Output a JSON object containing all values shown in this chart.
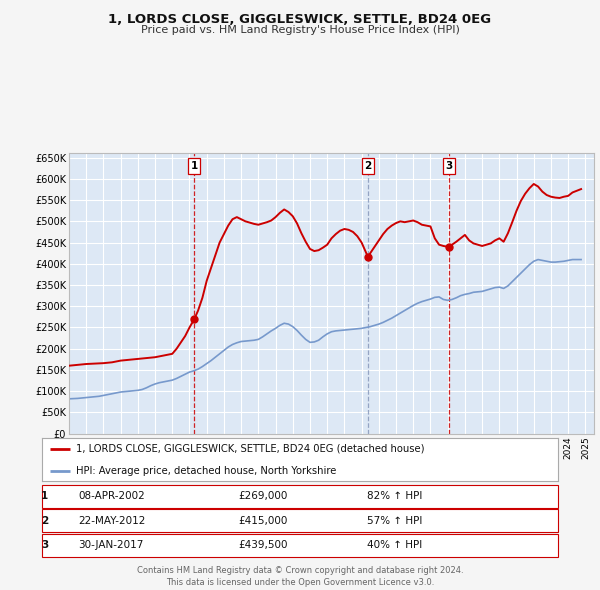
{
  "title": "1, LORDS CLOSE, GIGGLESWICK, SETTLE, BD24 0EG",
  "subtitle": "Price paid vs. HM Land Registry's House Price Index (HPI)",
  "ylim": [
    0,
    660000
  ],
  "yticks": [
    0,
    50000,
    100000,
    150000,
    200000,
    250000,
    300000,
    350000,
    400000,
    450000,
    500000,
    550000,
    600000,
    650000
  ],
  "xlim_start": 1995.0,
  "xlim_end": 2025.5,
  "background_color": "#f5f5f5",
  "plot_bg_color": "#dde8f5",
  "grid_color": "#ffffff",
  "red_line_color": "#cc0000",
  "blue_line_color": "#7799cc",
  "vline_red_color": "#cc0000",
  "vline_blue_color": "#8899bb",
  "sale_points": [
    {
      "year": 2002.27,
      "price": 269000,
      "label": "1"
    },
    {
      "year": 2012.38,
      "price": 415000,
      "label": "2"
    },
    {
      "year": 2017.08,
      "price": 439500,
      "label": "3"
    }
  ],
  "legend_entries": [
    "1, LORDS CLOSE, GIGGLESWICK, SETTLE, BD24 0EG (detached house)",
    "HPI: Average price, detached house, North Yorkshire"
  ],
  "table_data": [
    [
      "1",
      "08-APR-2002",
      "£269,000",
      "82% ↑ HPI"
    ],
    [
      "2",
      "22-MAY-2012",
      "£415,000",
      "57% ↑ HPI"
    ],
    [
      "3",
      "30-JAN-2017",
      "£439,500",
      "40% ↑ HPI"
    ]
  ],
  "footer": "Contains HM Land Registry data © Crown copyright and database right 2024.\nThis data is licensed under the Open Government Licence v3.0.",
  "hpi_data": {
    "years": [
      1995.0,
      1995.25,
      1995.5,
      1995.75,
      1996.0,
      1996.25,
      1996.5,
      1996.75,
      1997.0,
      1997.25,
      1997.5,
      1997.75,
      1998.0,
      1998.25,
      1998.5,
      1998.75,
      1999.0,
      1999.25,
      1999.5,
      1999.75,
      2000.0,
      2000.25,
      2000.5,
      2000.75,
      2001.0,
      2001.25,
      2001.5,
      2001.75,
      2002.0,
      2002.25,
      2002.5,
      2002.75,
      2003.0,
      2003.25,
      2003.5,
      2003.75,
      2004.0,
      2004.25,
      2004.5,
      2004.75,
      2005.0,
      2005.25,
      2005.5,
      2005.75,
      2006.0,
      2006.25,
      2006.5,
      2006.75,
      2007.0,
      2007.25,
      2007.5,
      2007.75,
      2008.0,
      2008.25,
      2008.5,
      2008.75,
      2009.0,
      2009.25,
      2009.5,
      2009.75,
      2010.0,
      2010.25,
      2010.5,
      2010.75,
      2011.0,
      2011.25,
      2011.5,
      2011.75,
      2012.0,
      2012.25,
      2012.5,
      2012.75,
      2013.0,
      2013.25,
      2013.5,
      2013.75,
      2014.0,
      2014.25,
      2014.5,
      2014.75,
      2015.0,
      2015.25,
      2015.5,
      2015.75,
      2016.0,
      2016.25,
      2016.5,
      2016.75,
      2017.0,
      2017.25,
      2017.5,
      2017.75,
      2018.0,
      2018.25,
      2018.5,
      2018.75,
      2019.0,
      2019.25,
      2019.5,
      2019.75,
      2020.0,
      2020.25,
      2020.5,
      2020.75,
      2021.0,
      2021.25,
      2021.5,
      2021.75,
      2022.0,
      2022.25,
      2022.5,
      2022.75,
      2023.0,
      2023.25,
      2023.5,
      2023.75,
      2024.0,
      2024.25,
      2024.5,
      2024.75
    ],
    "values": [
      82000,
      82500,
      83000,
      84000,
      85000,
      86000,
      87000,
      88000,
      90000,
      92000,
      94000,
      96000,
      98000,
      99000,
      100000,
      101000,
      102000,
      104000,
      108000,
      113000,
      117000,
      120000,
      122000,
      124000,
      126000,
      130000,
      135000,
      140000,
      145000,
      148000,
      152000,
      158000,
      165000,
      172000,
      180000,
      188000,
      196000,
      204000,
      210000,
      214000,
      217000,
      218000,
      219000,
      220000,
      222000,
      228000,
      235000,
      242000,
      248000,
      255000,
      260000,
      258000,
      252000,
      243000,
      232000,
      222000,
      215000,
      216000,
      220000,
      228000,
      235000,
      240000,
      242000,
      243000,
      244000,
      245000,
      246000,
      247000,
      248000,
      250000,
      252000,
      255000,
      258000,
      262000,
      267000,
      272000,
      278000,
      284000,
      290000,
      296000,
      302000,
      307000,
      311000,
      314000,
      317000,
      321000,
      322000,
      316000,
      314000,
      316000,
      320000,
      325000,
      328000,
      330000,
      333000,
      334000,
      335000,
      338000,
      341000,
      344000,
      345000,
      342000,
      348000,
      358000,
      368000,
      378000,
      388000,
      398000,
      406000,
      410000,
      408000,
      406000,
      404000,
      404000,
      405000,
      406000,
      408000,
      410000,
      410000,
      410000
    ]
  },
  "property_data": {
    "years": [
      1995.0,
      1995.25,
      1995.5,
      1995.75,
      1996.0,
      1996.25,
      1996.5,
      1996.75,
      1997.0,
      1997.25,
      1997.5,
      1997.75,
      1998.0,
      1998.25,
      1998.5,
      1998.75,
      1999.0,
      1999.25,
      1999.5,
      1999.75,
      2000.0,
      2000.25,
      2000.5,
      2000.75,
      2001.0,
      2001.25,
      2001.5,
      2001.75,
      2002.0,
      2002.27,
      2002.5,
      2002.75,
      2003.0,
      2003.25,
      2003.5,
      2003.75,
      2004.0,
      2004.25,
      2004.5,
      2004.75,
      2005.0,
      2005.25,
      2005.5,
      2005.75,
      2006.0,
      2006.25,
      2006.5,
      2006.75,
      2007.0,
      2007.25,
      2007.5,
      2007.75,
      2008.0,
      2008.25,
      2008.5,
      2008.75,
      2009.0,
      2009.25,
      2009.5,
      2009.75,
      2010.0,
      2010.25,
      2010.5,
      2010.75,
      2011.0,
      2011.25,
      2011.5,
      2011.75,
      2012.0,
      2012.38,
      2012.5,
      2012.75,
      2013.0,
      2013.25,
      2013.5,
      2013.75,
      2014.0,
      2014.25,
      2014.5,
      2014.75,
      2015.0,
      2015.25,
      2015.5,
      2015.75,
      2016.0,
      2016.25,
      2016.5,
      2016.75,
      2017.08,
      2017.25,
      2017.5,
      2017.75,
      2018.0,
      2018.25,
      2018.5,
      2018.75,
      2019.0,
      2019.25,
      2019.5,
      2019.75,
      2020.0,
      2020.25,
      2020.5,
      2020.75,
      2021.0,
      2021.25,
      2021.5,
      2021.75,
      2022.0,
      2022.25,
      2022.5,
      2022.75,
      2023.0,
      2023.25,
      2023.5,
      2023.75,
      2024.0,
      2024.25,
      2024.5,
      2024.75
    ],
    "values": [
      160000,
      161000,
      162000,
      163000,
      164000,
      164500,
      165000,
      165500,
      166000,
      167000,
      168000,
      170000,
      172000,
      173000,
      174000,
      175000,
      176000,
      177000,
      178000,
      179000,
      180000,
      182000,
      184000,
      186000,
      188000,
      200000,
      215000,
      230000,
      250000,
      269000,
      290000,
      320000,
      360000,
      390000,
      420000,
      450000,
      470000,
      490000,
      505000,
      510000,
      505000,
      500000,
      497000,
      494000,
      492000,
      495000,
      498000,
      502000,
      510000,
      520000,
      528000,
      522000,
      512000,
      495000,
      472000,
      452000,
      435000,
      430000,
      432000,
      438000,
      445000,
      460000,
      470000,
      478000,
      482000,
      480000,
      475000,
      465000,
      450000,
      415000,
      425000,
      440000,
      455000,
      470000,
      482000,
      490000,
      496000,
      500000,
      498000,
      500000,
      502000,
      498000,
      492000,
      490000,
      488000,
      460000,
      445000,
      442000,
      439500,
      445000,
      452000,
      460000,
      468000,
      455000,
      448000,
      445000,
      442000,
      445000,
      448000,
      455000,
      460000,
      452000,
      472000,
      498000,
      525000,
      548000,
      565000,
      578000,
      588000,
      582000,
      570000,
      562000,
      558000,
      556000,
      555000,
      558000,
      560000,
      568000,
      572000,
      576000
    ]
  }
}
